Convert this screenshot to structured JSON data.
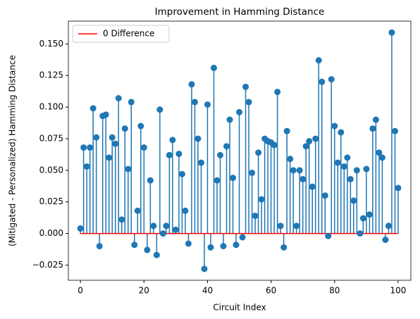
{
  "chart_data": {
    "type": "stem",
    "title": "Improvement in Hamming Distance",
    "x_label": "Circuit Index",
    "y_label": "(Mitigated - Personalized) Hamming Distance",
    "x": [
      0,
      1,
      2,
      3,
      4,
      5,
      6,
      7,
      8,
      9,
      10,
      11,
      12,
      13,
      14,
      15,
      16,
      17,
      18,
      19,
      20,
      21,
      22,
      23,
      24,
      25,
      26,
      27,
      28,
      29,
      30,
      31,
      32,
      33,
      34,
      35,
      36,
      37,
      38,
      39,
      40,
      41,
      42,
      43,
      44,
      45,
      46,
      47,
      48,
      49,
      50,
      51,
      52,
      53,
      54,
      55,
      56,
      57,
      58,
      59,
      60,
      61,
      62,
      63,
      64,
      65,
      66,
      67,
      68,
      69,
      70,
      71,
      72,
      73,
      74,
      75,
      76,
      77,
      78,
      79,
      80,
      81,
      82,
      83,
      84,
      85,
      86,
      87,
      88,
      89,
      90,
      91,
      92,
      93,
      94,
      95,
      96,
      97,
      98,
      99,
      100
    ],
    "values": [
      0.004,
      0.068,
      0.053,
      0.068,
      0.099,
      0.076,
      -0.01,
      0.093,
      0.094,
      0.06,
      0.076,
      0.071,
      0.107,
      0.011,
      0.083,
      0.051,
      0.104,
      -0.009,
      0.018,
      0.085,
      0.068,
      -0.013,
      0.042,
      0.006,
      -0.017,
      0.098,
      0.0,
      0.006,
      0.062,
      0.074,
      0.003,
      0.063,
      0.047,
      0.018,
      -0.008,
      0.118,
      0.104,
      0.075,
      0.056,
      -0.028,
      0.102,
      -0.011,
      0.131,
      0.042,
      0.062,
      -0.01,
      0.069,
      0.09,
      0.044,
      -0.009,
      0.096,
      -0.003,
      0.116,
      0.104,
      0.048,
      0.014,
      0.064,
      0.027,
      0.075,
      0.073,
      0.072,
      0.07,
      0.112,
      0.006,
      -0.011,
      0.081,
      0.059,
      0.05,
      0.006,
      0.05,
      0.043,
      0.069,
      0.073,
      0.037,
      0.075,
      0.137,
      0.12,
      0.03,
      -0.002,
      0.122,
      0.085,
      0.056,
      0.08,
      0.053,
      0.06,
      0.043,
      0.026,
      0.05,
      0.0,
      0.012,
      0.051,
      0.015,
      0.083,
      0.09,
      0.064,
      0.06,
      -0.005,
      0.006,
      0.159,
      0.081,
      0.036
    ],
    "color": "#1f77b4",
    "baseline": {
      "name": "0 Difference",
      "color": "#ff0000"
    },
    "legend": "upper left",
    "xlim": [
      -3.8,
      104
    ],
    "ylim": [
      -0.037,
      0.168
    ],
    "xticks": [
      0,
      20,
      40,
      60,
      80,
      100
    ],
    "yticks": [
      {
        "value": -0.025,
        "label": "−0.025"
      },
      {
        "value": 0,
        "label": "0.000"
      },
      {
        "value": 0.025,
        "label": "0.025"
      },
      {
        "value": 0.05,
        "label": "0.050"
      },
      {
        "value": 0.075,
        "label": "0.075"
      },
      {
        "value": 0.1,
        "label": "0.100"
      },
      {
        "value": 0.125,
        "label": "0.125"
      },
      {
        "value": 0.15,
        "label": "0.150"
      }
    ]
  }
}
